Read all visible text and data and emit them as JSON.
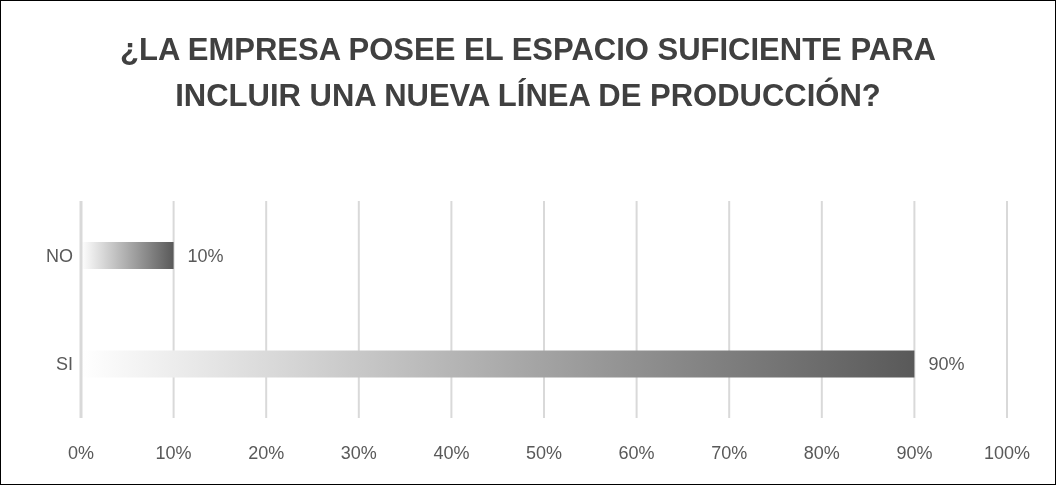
{
  "chart_data": {
    "type": "bar",
    "title": "¿LA EMPRESA POSEE EL ESPACIO SUFICIENTE PARA INCLUIR UNA NUEVA LÍNEA DE PRODUCCIÓN?",
    "orientation": "horizontal",
    "categories": [
      "NO",
      "SI"
    ],
    "values": [
      10,
      90
    ],
    "color": "#595959",
    "value_labels": [
      "10%",
      "90%"
    ],
    "xlim": [
      0,
      100
    ],
    "xticks": [
      {
        "value": 0,
        "label": "0%"
      },
      {
        "value": 10,
        "label": "10%"
      },
      {
        "value": 20,
        "label": "20%"
      },
      {
        "value": 30,
        "label": "30%"
      },
      {
        "value": 40,
        "label": "40%"
      },
      {
        "value": 50,
        "label": "50%"
      },
      {
        "value": 60,
        "label": "60%"
      },
      {
        "value": 70,
        "label": "70%"
      },
      {
        "value": 80,
        "label": "80%"
      },
      {
        "value": 90,
        "label": "90%"
      },
      {
        "value": 100,
        "label": "100%"
      }
    ],
    "grid": "x",
    "legend": false
  }
}
